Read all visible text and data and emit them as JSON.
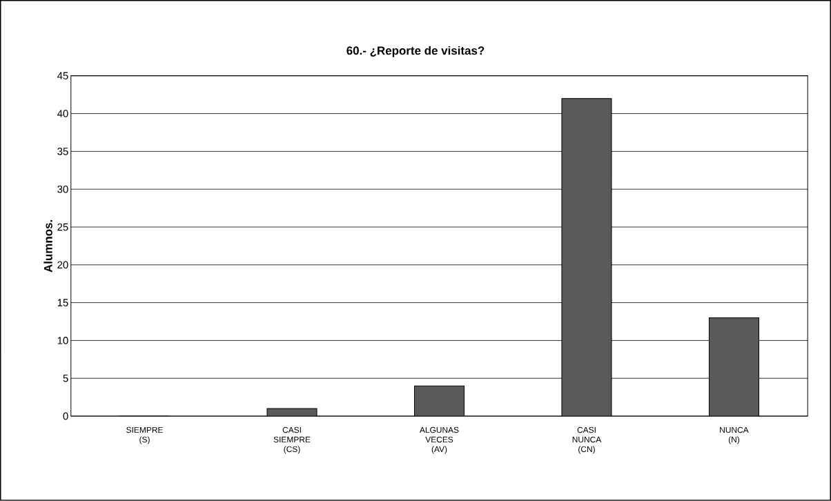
{
  "chart_data": {
    "type": "bar",
    "title": "60.- ¿Reporte de visitas?",
    "ylabel": "Alumnos.",
    "categories": [
      "SIEMPRE (S)",
      "CASI SIEMPRE (CS)",
      "ALGUNAS VECES (AV)",
      "CASI NUNCA (CN)",
      "NUNCA (N)"
    ],
    "values": [
      0,
      1,
      4,
      42,
      13
    ],
    "color": "#5a5a5a",
    "ylim": [
      0,
      45
    ],
    "yticks": [
      0,
      5,
      10,
      15,
      20,
      25,
      30,
      35,
      40,
      45
    ],
    "grid": "y"
  }
}
